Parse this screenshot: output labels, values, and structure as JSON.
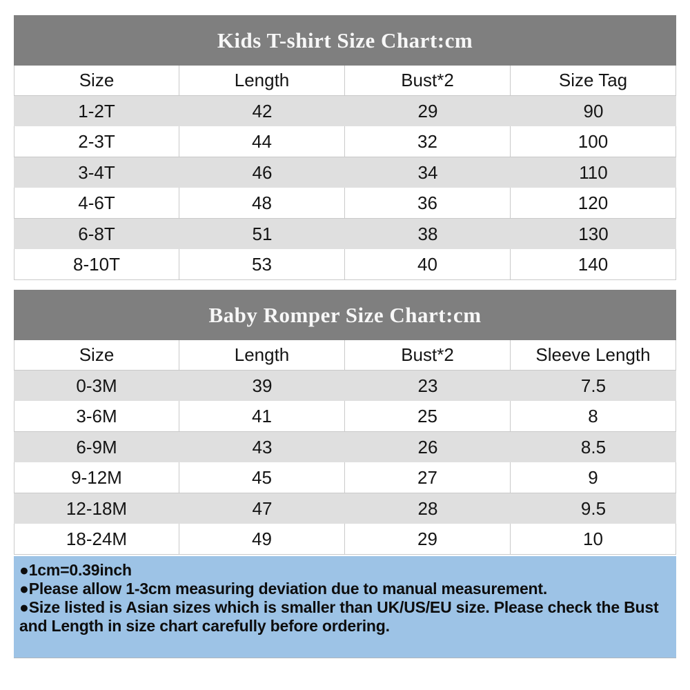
{
  "colors": {
    "title_bar_bg": "#7f7f7f",
    "title_text": "#f7f7f7",
    "row_stripe": "#dfdfdf",
    "grid_line": "#c9c9c9",
    "notes_bg": "#9dc3e6",
    "body_text": "#151515"
  },
  "chart_data": [
    {
      "type": "table",
      "title": "Kids T-shirt Size Chart:cm",
      "columns": [
        "Size",
        "Length",
        "Bust*2",
        "Size Tag"
      ],
      "rows": [
        [
          "1-2T",
          "42",
          "29",
          "90"
        ],
        [
          "2-3T",
          "44",
          "32",
          "100"
        ],
        [
          "3-4T",
          "46",
          "34",
          "110"
        ],
        [
          "4-6T",
          "48",
          "36",
          "120"
        ],
        [
          "6-8T",
          "51",
          "38",
          "130"
        ],
        [
          "8-10T",
          "53",
          "40",
          "140"
        ]
      ]
    },
    {
      "type": "table",
      "title": "Baby Romper Size Chart:cm",
      "columns": [
        "Size",
        "Length",
        "Bust*2",
        "Sleeve Length"
      ],
      "rows": [
        [
          "0-3M",
          "39",
          "23",
          "7.5"
        ],
        [
          "3-6M",
          "41",
          "25",
          "8"
        ],
        [
          "6-9M",
          "43",
          "26",
          "8.5"
        ],
        [
          "9-12M",
          "45",
          "27",
          "9"
        ],
        [
          "12-18M",
          "47",
          "28",
          "9.5"
        ],
        [
          "18-24M",
          "49",
          "29",
          "10"
        ]
      ]
    }
  ],
  "notes": {
    "lines": [
      "●1cm=0.39inch",
      "●Please allow 1-3cm measuring deviation due to manual measurement.",
      "●Size listed is Asian sizes which is smaller than UK/US/EU size. Please check the Bust and Length in size chart carefully before ordering."
    ]
  }
}
